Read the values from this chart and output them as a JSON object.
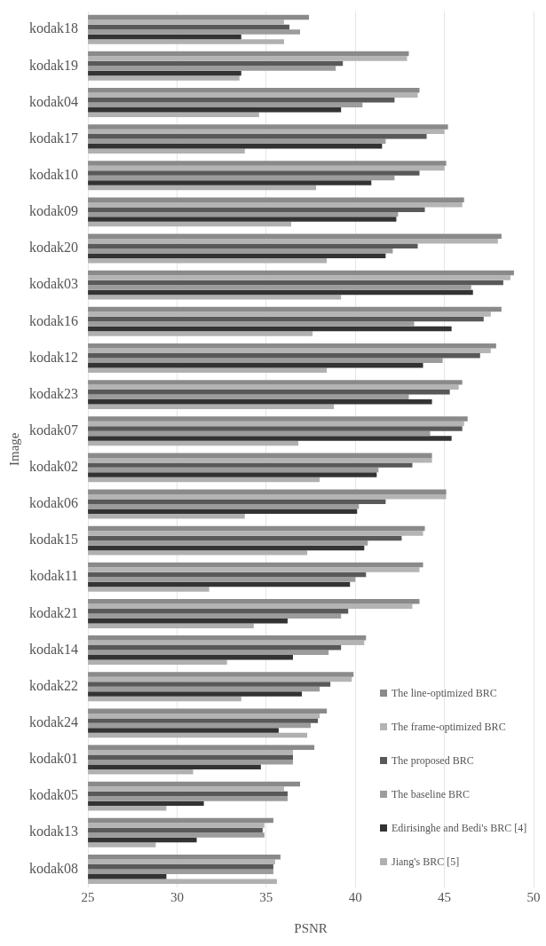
{
  "chart_data": {
    "type": "bar",
    "orientation": "horizontal",
    "xlabel": "PSNR",
    "ylabel": "Image",
    "categories": [
      "kodak18",
      "kodak19",
      "kodak04",
      "kodak17",
      "kodak10",
      "kodak09",
      "kodak20",
      "kodak03",
      "kodak16",
      "kodak12",
      "kodak23",
      "kodak07",
      "kodak02",
      "kodak06",
      "kodak15",
      "kodak11",
      "kodak21",
      "kodak14",
      "kodak22",
      "kodak24",
      "kodak01",
      "kodak05",
      "kodak13",
      "kodak08"
    ],
    "series": [
      {
        "name": "The line-optimized BRC",
        "color": "#8a8a8a",
        "values": [
          37.4,
          43.0,
          43.6,
          45.2,
          45.1,
          46.1,
          48.2,
          48.9,
          48.2,
          47.9,
          46.0,
          46.3,
          44.3,
          45.1,
          43.9,
          43.8,
          43.6,
          40.6,
          39.9,
          38.4,
          37.7,
          36.9,
          35.4,
          35.8
        ]
      },
      {
        "name": "The frame-optimized BRC",
        "color": "#b4b4b4",
        "values": [
          36.0,
          42.9,
          43.5,
          45.0,
          45.0,
          46.0,
          48.0,
          48.7,
          47.6,
          47.6,
          45.8,
          46.1,
          44.3,
          45.1,
          43.8,
          43.6,
          43.2,
          40.5,
          39.8,
          38.0,
          36.5,
          36.0,
          34.9,
          35.5
        ]
      },
      {
        "name": "The proposed BRC",
        "color": "#595959",
        "values": [
          36.3,
          39.3,
          42.2,
          44.0,
          43.6,
          43.9,
          43.5,
          48.3,
          47.2,
          47.0,
          45.3,
          46.0,
          43.2,
          41.7,
          42.6,
          40.6,
          39.6,
          39.2,
          38.6,
          37.9,
          36.5,
          36.2,
          34.8,
          35.4
        ]
      },
      {
        "name": "The baseline BRC",
        "color": "#9c9c9c",
        "values": [
          36.9,
          38.9,
          40.4,
          41.7,
          42.2,
          42.4,
          42.1,
          46.5,
          43.3,
          44.9,
          43.0,
          44.2,
          41.3,
          40.2,
          40.7,
          40.0,
          39.2,
          38.5,
          38.0,
          37.5,
          36.5,
          36.2,
          34.9,
          35.4
        ]
      },
      {
        "name": "Edirisinghe and Bedi's BRC [4]",
        "color": "#333333",
        "values": [
          33.6,
          33.6,
          39.2,
          41.5,
          40.9,
          42.3,
          41.7,
          46.6,
          45.4,
          43.8,
          44.3,
          45.4,
          41.2,
          40.1,
          40.5,
          39.7,
          36.2,
          36.5,
          37.0,
          35.7,
          34.7,
          31.5,
          31.1,
          29.4
        ]
      },
      {
        "name": "Jiang's BRC [5]",
        "color": "#b0b0b0",
        "values": [
          36.0,
          33.5,
          34.6,
          33.8,
          37.8,
          36.4,
          38.4,
          39.2,
          37.6,
          38.4,
          38.8,
          36.8,
          38.0,
          33.8,
          37.3,
          31.8,
          34.3,
          32.8,
          33.6,
          37.3,
          30.9,
          29.4,
          28.8,
          35.6
        ]
      }
    ],
    "xlim": [
      25,
      50
    ],
    "xticks": [
      25,
      30,
      35,
      40,
      45,
      50
    ],
    "grid": "x",
    "legend": "bottom right"
  }
}
